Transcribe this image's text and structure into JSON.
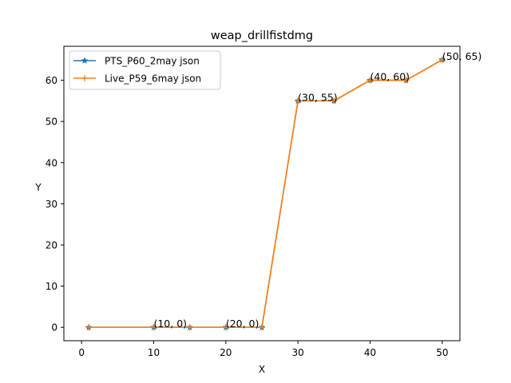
{
  "chart_data": {
    "type": "line",
    "title": "weap_drillfistdmg",
    "xlabel": "X",
    "ylabel": "Y",
    "xlim": [
      -2.45,
      52.45
    ],
    "ylim": [
      -3.25,
      68.25
    ],
    "xticks": [
      0,
      10,
      20,
      30,
      40,
      50
    ],
    "yticks": [
      0,
      10,
      20,
      30,
      40,
      50,
      60
    ],
    "grid": false,
    "legend_position": "upper-left",
    "series": [
      {
        "name": "PTS_P60_2may json",
        "color": "#1f77b4",
        "marker": "star",
        "x": [
          1,
          10,
          15,
          20,
          25,
          30,
          35,
          40,
          45,
          50
        ],
        "y": [
          0,
          0,
          0,
          0,
          0,
          55,
          55,
          60,
          60,
          65
        ]
      },
      {
        "name": "Live_P59_6may json",
        "color": "#ff7f0e",
        "marker": "plus",
        "x": [
          1,
          10,
          15,
          20,
          25,
          30,
          35,
          40,
          45,
          50
        ],
        "y": [
          0,
          0,
          0,
          0,
          0,
          55,
          55,
          60,
          60,
          65
        ]
      }
    ],
    "annotations": [
      {
        "x": 10,
        "y": 0,
        "text": "(10, 0)"
      },
      {
        "x": 20,
        "y": 0,
        "text": "(20, 0)"
      },
      {
        "x": 30,
        "y": 55,
        "text": "(30, 55)"
      },
      {
        "x": 40,
        "y": 60,
        "text": "(40, 60)"
      },
      {
        "x": 50,
        "y": 65,
        "text": "(50, 65)"
      }
    ]
  }
}
